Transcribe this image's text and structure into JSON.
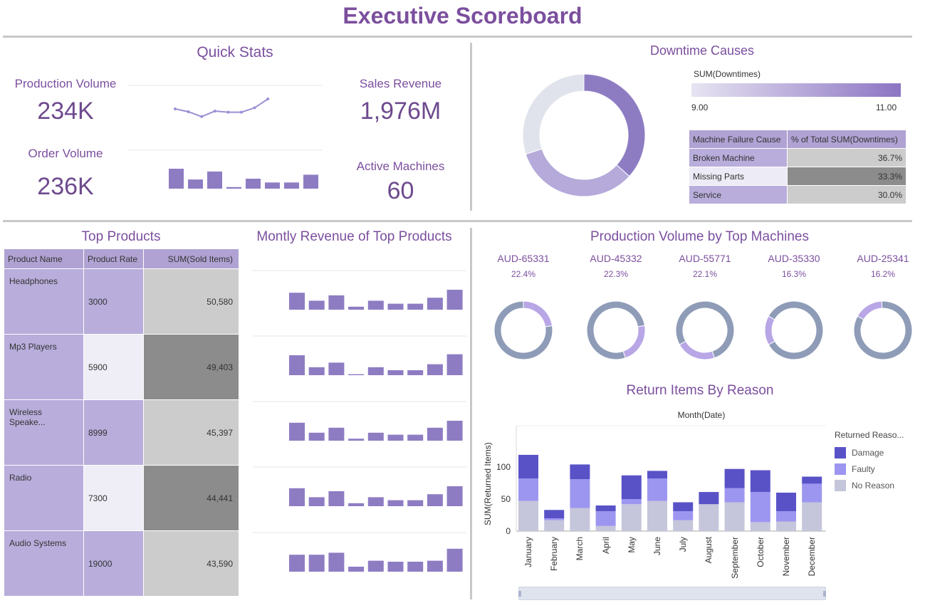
{
  "title": "Executive Scoreboard",
  "quick_stats": {
    "title": "Quick Stats",
    "production_volume": {
      "label": "Production Volume",
      "value": "234K"
    },
    "order_volume": {
      "label": "Order Volume",
      "value": "236K"
    },
    "sales_revenue": {
      "label": "Sales Revenue",
      "value": "1,976M"
    },
    "active_machines": {
      "label": "Active Machines",
      "value": "60"
    },
    "line_spark": [
      0.55,
      0.42,
      0.2,
      0.45,
      0.4,
      0.4,
      0.6,
      1.0
    ],
    "bar_spark": [
      1.0,
      0.46,
      0.86,
      0.08,
      0.5,
      0.31,
      0.31,
      0.7
    ]
  },
  "downtime": {
    "title": "Downtime Causes",
    "scale_label": "SUM(Downtimes)",
    "scale_min": "9.00",
    "scale_max": "11.00",
    "col1": "Machine Failure Cause",
    "col2": "% of Total SUM(Downtimes)",
    "rows": [
      {
        "cause": "Broken Machine",
        "pct": "36.7%",
        "value": 36.7,
        "color": "#8e7cc3"
      },
      {
        "cause": "Missing Parts",
        "pct": "33.3%",
        "value": 33.3,
        "color": "#b5aad9"
      },
      {
        "cause": "Service",
        "pct": "30.0%",
        "value": 30.0,
        "color": "#e1e3ec"
      }
    ],
    "row_bg": [
      "#b8addb",
      "#ecebf6",
      "#b8addb"
    ],
    "pct_bg": [
      "#cccccc",
      "#8c8c8c",
      "#cccccc"
    ]
  },
  "top_products": {
    "title": "Top Products",
    "col_name": "Product Name",
    "col_rate": "Product Rate",
    "col_sold": "SUM(Sold Items)",
    "rows": [
      {
        "name": "Headphones",
        "rate": "3000",
        "sold": "50,580"
      },
      {
        "name": "Mp3 Players",
        "rate": "5900",
        "sold": "49,403"
      },
      {
        "name": "Wireless Speake...",
        "rate": "8999",
        "sold": "45,397"
      },
      {
        "name": "Radio",
        "rate": "7300",
        "sold": "44,441"
      },
      {
        "name": "Audio Systems",
        "rate": "19000",
        "sold": "43,590"
      }
    ]
  },
  "monthly_revenue": {
    "title": "Montly Revenue of Top Products",
    "rows": [
      [
        0.85,
        0.45,
        0.72,
        0.15,
        0.45,
        0.3,
        0.3,
        0.6,
        1.0
      ],
      [
        1.0,
        0.4,
        0.63,
        0.05,
        0.4,
        0.25,
        0.25,
        0.55,
        1.05
      ],
      [
        0.9,
        0.4,
        0.65,
        0.1,
        0.4,
        0.3,
        0.3,
        0.65,
        1.0
      ],
      [
        0.9,
        0.45,
        0.75,
        0.15,
        0.45,
        0.3,
        0.3,
        0.6,
        1.0
      ],
      [
        0.85,
        0.85,
        0.95,
        0.25,
        0.55,
        0.5,
        0.5,
        0.55,
        1.15
      ]
    ]
  },
  "machines": {
    "title": "Production Volume by Top Machines",
    "items": [
      {
        "name": "AUD-65331",
        "pct": "22.4%",
        "value": 22.4,
        "start": 0
      },
      {
        "name": "AUD-45332",
        "pct": "22.3%",
        "value": 22.3,
        "start": 22.4
      },
      {
        "name": "AUD-55771",
        "pct": "22.1%",
        "value": 22.1,
        "start": 44.7
      },
      {
        "name": "AUD-35330",
        "pct": "16.3%",
        "value": 16.3,
        "start": 66.8
      },
      {
        "name": "AUD-25341",
        "pct": "16.2%",
        "value": 16.2,
        "start": 83.1
      }
    ]
  },
  "chart_data": {
    "type": "bar",
    "title": "Return Items By Reason",
    "subtitle": "Month(Date)",
    "ylabel": "SUM(Returned Items)",
    "xlabel": "",
    "ylim": [
      0,
      150
    ],
    "yticks": [
      "0",
      "50",
      "100"
    ],
    "legend_title": "Returned Reaso...",
    "legend_position": "right",
    "categories": [
      "January",
      "February",
      "March",
      "April",
      "May",
      "June",
      "July",
      "August",
      "September",
      "October",
      "November",
      "December"
    ],
    "series": [
      {
        "name": "No Reason",
        "color": "#c5c5db",
        "values": [
          47,
          17,
          36,
          8,
          42,
          47,
          17,
          42,
          45,
          14,
          15,
          45
        ]
      },
      {
        "name": "Faulty",
        "color": "#9d96f0",
        "values": [
          35,
          3,
          45,
          23,
          8,
          35,
          14,
          0,
          22,
          47,
          16,
          29
        ]
      },
      {
        "name": "Damage",
        "color": "#5952c7",
        "values": [
          37,
          13,
          23,
          9,
          37,
          12,
          14,
          19,
          30,
          34,
          29,
          11
        ]
      }
    ]
  }
}
